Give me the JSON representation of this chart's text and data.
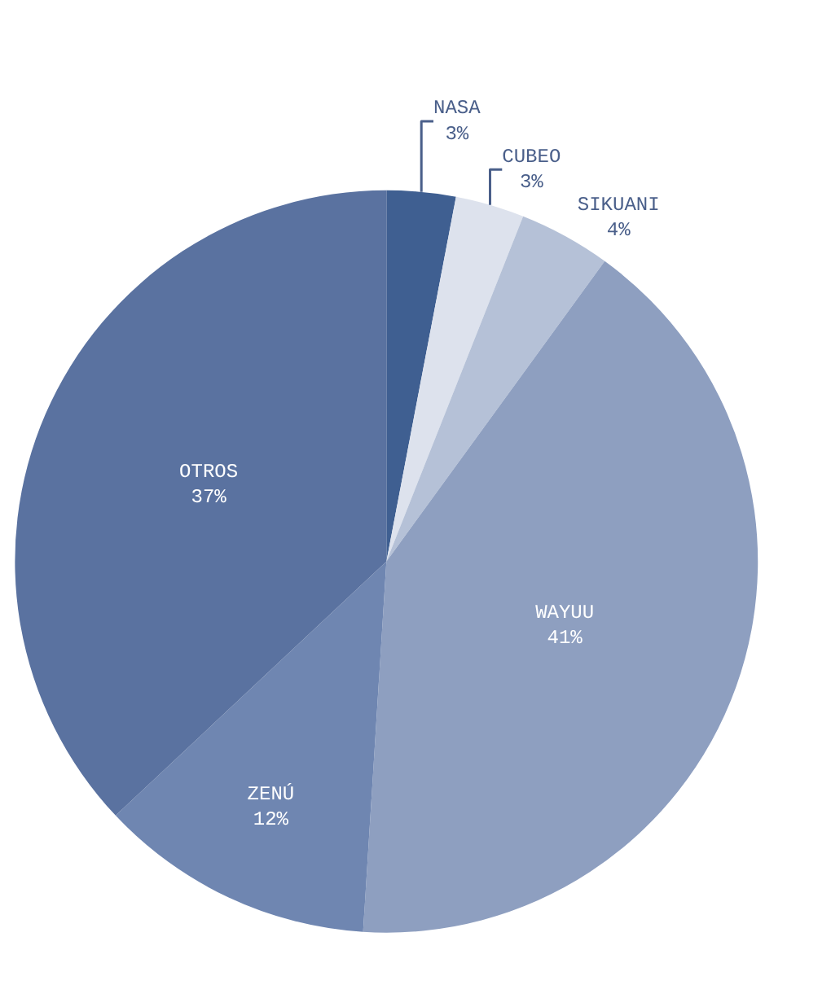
{
  "chart_data": {
    "type": "pie",
    "categories": [
      "NASA",
      "CUBEO",
      "SIKUANI",
      "WAYUU",
      "ZENÚ",
      "OTROS"
    ],
    "values": [
      3,
      3,
      4,
      41,
      12,
      37
    ],
    "value_labels": [
      "3%",
      "3%",
      "4%",
      "41%",
      "12%",
      "37%"
    ],
    "colors": [
      "#3f5f91",
      "#dde2ed",
      "#b5c1d7",
      "#8e9fc0",
      "#6f86b1",
      "#5a72a0"
    ]
  }
}
